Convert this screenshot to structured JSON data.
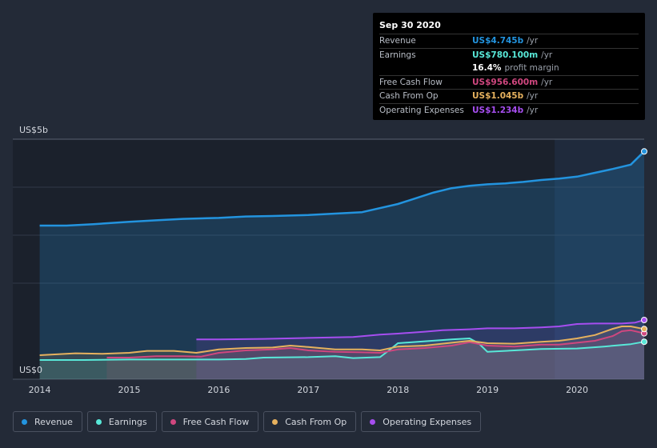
{
  "chart_data": {
    "type": "area",
    "y_axis": {
      "top_label": "US$5b",
      "bottom_label": "US$0",
      "ylim": [
        0,
        5
      ]
    },
    "x_ticks": [
      "2014",
      "2015",
      "2016",
      "2017",
      "2018",
      "2019",
      "2020"
    ],
    "x_range": [
      2013.7,
      2020.75
    ],
    "highlight_start": 2019.75,
    "series": [
      {
        "name": "Revenue",
        "color": "#2394df",
        "x": [
          2014.0,
          2014.3,
          2014.6,
          2015.0,
          2015.3,
          2015.6,
          2016.0,
          2016.3,
          2016.6,
          2017.0,
          2017.3,
          2017.6,
          2018.0,
          2018.2,
          2018.4,
          2018.6,
          2018.8,
          2019.0,
          2019.2,
          2019.4,
          2019.6,
          2019.8,
          2020.0,
          2020.2,
          2020.4,
          2020.6,
          2020.75
        ],
        "y": [
          3.2,
          3.2,
          3.23,
          3.28,
          3.31,
          3.34,
          3.36,
          3.39,
          3.4,
          3.42,
          3.45,
          3.48,
          3.65,
          3.77,
          3.89,
          3.98,
          4.03,
          4.06,
          4.08,
          4.11,
          4.15,
          4.18,
          4.22,
          4.3,
          4.38,
          4.47,
          4.745
        ]
      },
      {
        "name": "Earnings",
        "color": "#58e8d8",
        "x": [
          2014.0,
          2014.5,
          2015.0,
          2015.5,
          2016.0,
          2016.3,
          2016.5,
          2017.0,
          2017.3,
          2017.5,
          2017.8,
          2017.9,
          2018.0,
          2018.3,
          2018.6,
          2018.8,
          2018.9,
          2019.0,
          2019.3,
          2019.6,
          2020.0,
          2020.3,
          2020.6,
          2020.75
        ],
        "y": [
          0.4,
          0.4,
          0.41,
          0.41,
          0.41,
          0.42,
          0.45,
          0.46,
          0.48,
          0.44,
          0.46,
          0.6,
          0.75,
          0.79,
          0.83,
          0.85,
          0.75,
          0.57,
          0.6,
          0.63,
          0.64,
          0.68,
          0.73,
          0.78
        ]
      },
      {
        "name": "Free Cash Flow",
        "color": "#d0477f",
        "x": [
          2014.75,
          2015.0,
          2015.3,
          2015.6,
          2015.8,
          2016.0,
          2016.3,
          2016.6,
          2016.8,
          2017.0,
          2017.3,
          2017.6,
          2017.8,
          2018.0,
          2018.3,
          2018.6,
          2018.8,
          2019.0,
          2019.3,
          2019.6,
          2019.8,
          2020.0,
          2020.2,
          2020.4,
          2020.5,
          2020.6,
          2020.75
        ],
        "y": [
          0.45,
          0.45,
          0.48,
          0.48,
          0.47,
          0.55,
          0.6,
          0.62,
          0.65,
          0.6,
          0.57,
          0.56,
          0.55,
          0.62,
          0.65,
          0.7,
          0.77,
          0.7,
          0.68,
          0.72,
          0.72,
          0.76,
          0.8,
          0.9,
          1.0,
          1.02,
          0.9566
        ]
      },
      {
        "name": "Cash From Op",
        "color": "#e6b15e",
        "x": [
          2014.0,
          2014.4,
          2014.7,
          2015.0,
          2015.2,
          2015.5,
          2015.75,
          2016.0,
          2016.3,
          2016.6,
          2016.8,
          2017.0,
          2017.3,
          2017.6,
          2017.8,
          2018.0,
          2018.3,
          2018.6,
          2018.8,
          2019.0,
          2019.3,
          2019.6,
          2019.8,
          2020.0,
          2020.2,
          2020.4,
          2020.5,
          2020.6,
          2020.75
        ],
        "y": [
          0.5,
          0.54,
          0.53,
          0.55,
          0.59,
          0.59,
          0.55,
          0.62,
          0.65,
          0.66,
          0.7,
          0.67,
          0.62,
          0.62,
          0.6,
          0.68,
          0.7,
          0.76,
          0.8,
          0.75,
          0.74,
          0.78,
          0.8,
          0.85,
          0.92,
          1.05,
          1.1,
          1.1,
          1.045
        ]
      },
      {
        "name": "Operating Expenses",
        "color": "#a64ef0",
        "x": [
          2015.75,
          2016.0,
          2016.5,
          2017.0,
          2017.5,
          2017.8,
          2018.0,
          2018.3,
          2018.5,
          2018.8,
          2019.0,
          2019.3,
          2019.6,
          2019.8,
          2020.0,
          2020.2,
          2020.5,
          2020.65,
          2020.75
        ],
        "y": [
          0.83,
          0.83,
          0.84,
          0.86,
          0.88,
          0.93,
          0.95,
          0.99,
          1.02,
          1.04,
          1.06,
          1.06,
          1.08,
          1.1,
          1.15,
          1.16,
          1.16,
          1.18,
          1.234
        ]
      }
    ]
  },
  "tooltip": {
    "date": "Sep 30 2020",
    "rows": [
      {
        "label": "Revenue",
        "value": "US$4.745b",
        "unit": "/yr",
        "color": "#2394df"
      },
      {
        "label": "Earnings",
        "value": "US$780.100m",
        "unit": "/yr",
        "color": "#58e8d8"
      },
      {
        "label": "",
        "value": "16.4%",
        "unit": "profit margin",
        "color": "#ffffff"
      },
      {
        "label": "Free Cash Flow",
        "value": "US$956.600m",
        "unit": "/yr",
        "color": "#d0477f"
      },
      {
        "label": "Cash From Op",
        "value": "US$1.045b",
        "unit": "/yr",
        "color": "#e6b15e"
      },
      {
        "label": "Operating Expenses",
        "value": "US$1.234b",
        "unit": "/yr",
        "color": "#a64ef0"
      }
    ]
  },
  "legend": [
    {
      "label": "Revenue",
      "color": "#2394df"
    },
    {
      "label": "Earnings",
      "color": "#58e8d8"
    },
    {
      "label": "Free Cash Flow",
      "color": "#d0477f"
    },
    {
      "label": "Cash From Op",
      "color": "#e6b15e"
    },
    {
      "label": "Operating Expenses",
      "color": "#a64ef0"
    }
  ]
}
